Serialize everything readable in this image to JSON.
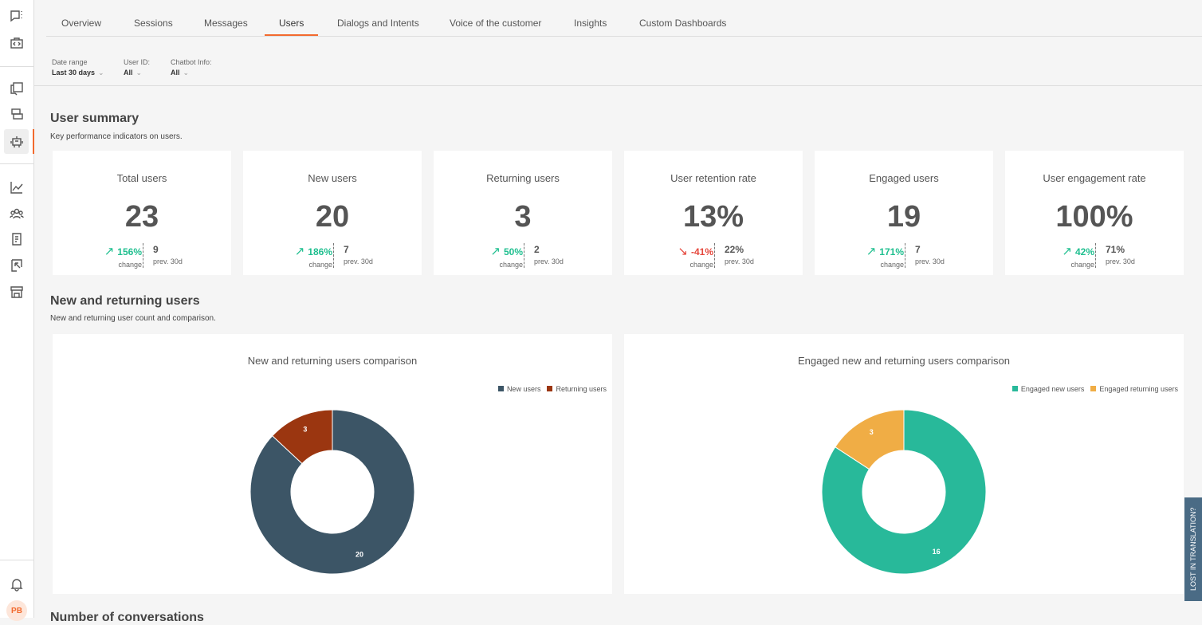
{
  "sidebar": {
    "icons": [
      "chat-options-icon",
      "code-briefcase-icon",
      "chat-copy-icon",
      "inbox-icon",
      "bot-icon",
      "chart-line-icon",
      "users-group-icon",
      "document-icon",
      "report-icon",
      "store-icon",
      "bell-icon"
    ],
    "avatar": "PB",
    "accent": "#f26a2e"
  },
  "tabs": [
    "Overview",
    "Sessions",
    "Messages",
    "Users",
    "Dialogs and Intents",
    "Voice of the customer",
    "Insights",
    "Custom Dashboards"
  ],
  "active_tab": "Users",
  "filters": [
    {
      "label": "Date range",
      "value": "Last 30 days"
    },
    {
      "label": "User ID:",
      "value": "All"
    },
    {
      "label": "Chatbot Info:",
      "value": "All"
    }
  ],
  "summary": {
    "title": "User summary",
    "subtitle": "Key performance indicators on users.",
    "cards": [
      {
        "title": "Total users",
        "value": "23",
        "change": "156%",
        "dir": "up",
        "change_label": "change",
        "prev": "9",
        "prev_label": "prev. 30d"
      },
      {
        "title": "New users",
        "value": "20",
        "change": "186%",
        "dir": "up",
        "change_label": "change",
        "prev": "7",
        "prev_label": "prev. 30d"
      },
      {
        "title": "Returning users",
        "value": "3",
        "change": "50%",
        "dir": "up",
        "change_label": "change",
        "prev": "2",
        "prev_label": "prev. 30d"
      },
      {
        "title": "User retention rate",
        "value": "13%",
        "change": "-41%",
        "dir": "down",
        "change_label": "change",
        "prev": "22%",
        "prev_label": "prev. 30d"
      },
      {
        "title": "Engaged users",
        "value": "19",
        "change": "171%",
        "dir": "up",
        "change_label": "change",
        "prev": "7",
        "prev_label": "prev. 30d"
      },
      {
        "title": "User engagement rate",
        "value": "100%",
        "change": "42%",
        "dir": "up",
        "change_label": "change",
        "prev": "71%",
        "prev_label": "prev. 30d"
      }
    ]
  },
  "new_returning": {
    "title": "New and returning users",
    "subtitle": "New and returning user count and comparison."
  },
  "chart_data": [
    {
      "type": "pie",
      "title": "New and returning users comparison",
      "legend": "top-right",
      "series": [
        {
          "name": "New users",
          "value": 20,
          "color": "#3c5566"
        },
        {
          "name": "Returning users",
          "value": 3,
          "color": "#9b3610"
        }
      ]
    },
    {
      "type": "pie",
      "title": "Engaged new and returning users comparison",
      "legend": "top-right",
      "series": [
        {
          "name": "Engaged new users",
          "value": 16,
          "color": "#28b99a"
        },
        {
          "name": "Engaged returning users",
          "value": 3,
          "color": "#f0ad45"
        }
      ]
    }
  ],
  "next_section": "Number of conversations",
  "feedback_tab": "LOST IN TRANSLATION?",
  "colors": {
    "up": "#1fbf8f",
    "down": "#e5473c"
  }
}
